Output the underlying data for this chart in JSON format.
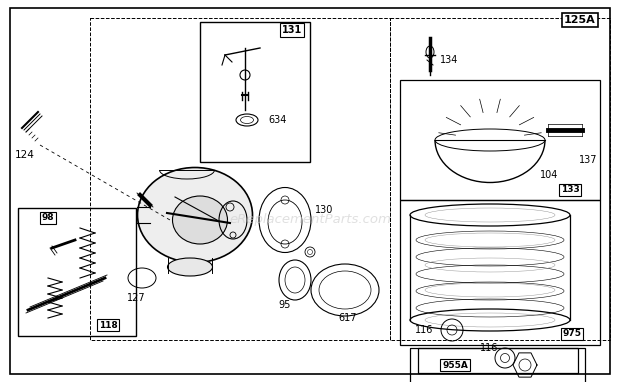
{
  "bg_color": "#ffffff",
  "watermark": "eReplacementParts.com",
  "fig_w": 6.2,
  "fig_h": 3.82,
  "dpi": 100
}
